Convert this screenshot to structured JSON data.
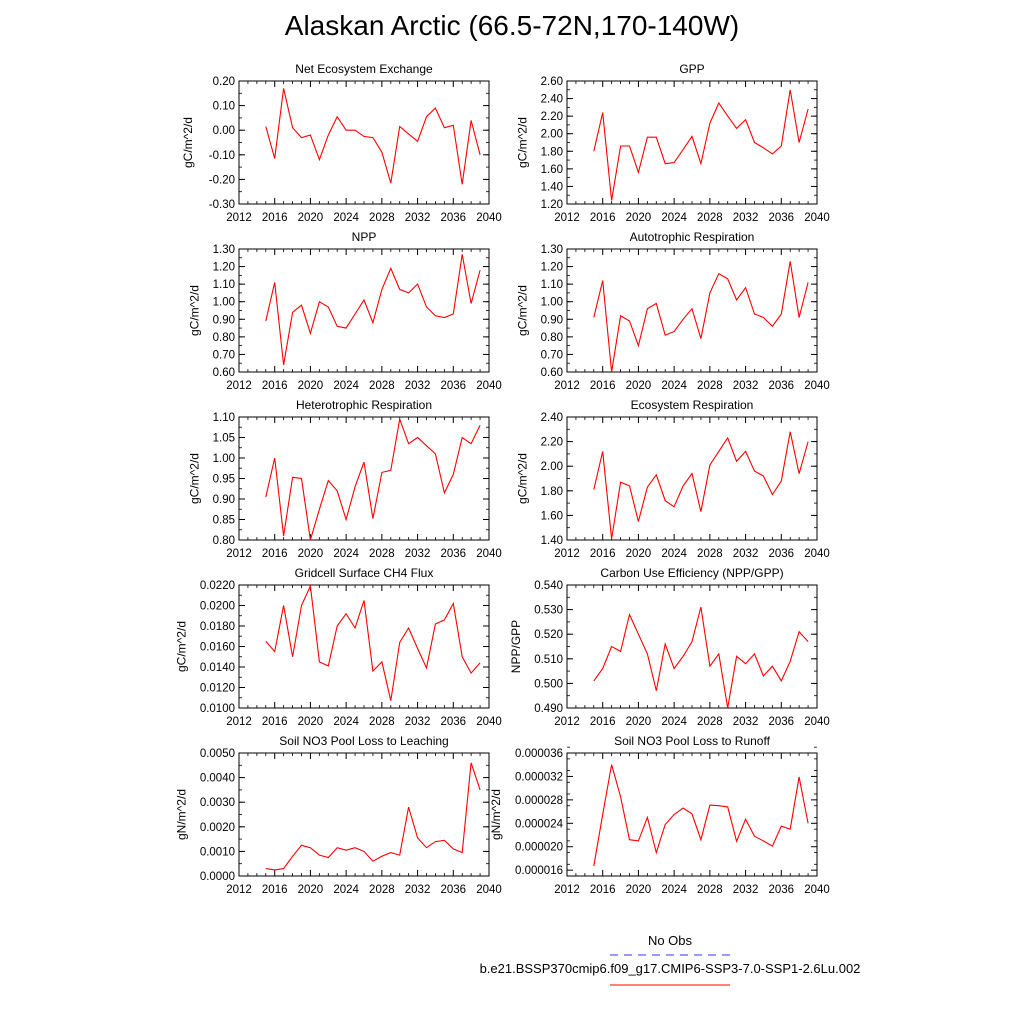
{
  "title": "Alaskan Arctic (66.5-72N,170-140W)",
  "colors": {
    "model": "#ff0000",
    "obs": "#3333ff",
    "axis": "#000000"
  },
  "legend": {
    "obs_label": "No Obs",
    "model_label": "b.e21.BSSP370cmip6.f09_g17.CMIP6-SSP3-7.0-SSP1-2.6Lu.002"
  },
  "chart_data": [
    {
      "type": "line",
      "title": "Net Ecosystem Exchange",
      "xlabel": "",
      "ylabel": "gC/m^2/d",
      "xlim": [
        2012,
        2040
      ],
      "ylim": [
        -0.3,
        0.2
      ],
      "xticks": [
        2012,
        2016,
        2020,
        2024,
        2028,
        2032,
        2036,
        2040
      ],
      "yticks": [
        -0.3,
        -0.2,
        -0.1,
        0.0,
        0.1,
        0.2
      ],
      "ytick_labels": [
        "-0.30",
        "-0.20",
        "-0.10",
        "0.00",
        "0.10",
        "0.20"
      ],
      "yminor": 0.05,
      "x": [
        2015,
        2016,
        2017,
        2018,
        2019,
        2020,
        2021,
        2022,
        2023,
        2024,
        2025,
        2026,
        2027,
        2028,
        2029,
        2030,
        2031,
        2032,
        2033,
        2034,
        2035,
        2036,
        2037,
        2038,
        2039
      ],
      "values": [
        0.015,
        -0.115,
        0.17,
        0.01,
        -0.03,
        -0.02,
        -0.12,
        -0.02,
        0.055,
        0.0,
        0.0,
        -0.025,
        -0.03,
        -0.09,
        -0.215,
        0.015,
        -0.015,
        -0.045,
        0.055,
        0.09,
        0.01,
        0.02,
        -0.22,
        0.04,
        -0.1
      ]
    },
    {
      "type": "line",
      "title": "GPP",
      "xlabel": "",
      "ylabel": "gC/m^2/d",
      "xlim": [
        2012,
        2040
      ],
      "ylim": [
        1.2,
        2.6
      ],
      "xticks": [
        2012,
        2016,
        2020,
        2024,
        2028,
        2032,
        2036,
        2040
      ],
      "yticks": [
        1.2,
        1.4,
        1.6,
        1.8,
        2.0,
        2.2,
        2.4,
        2.6
      ],
      "ytick_labels": [
        "1.20",
        "1.40",
        "1.60",
        "1.80",
        "2.00",
        "2.20",
        "2.40",
        "2.60"
      ],
      "yminor": 0.1,
      "x": [
        2015,
        2016,
        2017,
        2018,
        2019,
        2020,
        2021,
        2022,
        2023,
        2024,
        2025,
        2026,
        2027,
        2028,
        2029,
        2030,
        2031,
        2032,
        2033,
        2034,
        2035,
        2036,
        2037,
        2038,
        2039
      ],
      "values": [
        1.8,
        2.24,
        1.24,
        1.86,
        1.86,
        1.56,
        1.96,
        1.96,
        1.66,
        1.67,
        1.82,
        1.97,
        1.66,
        2.12,
        2.35,
        2.2,
        2.06,
        2.16,
        1.9,
        1.84,
        1.77,
        1.86,
        2.5,
        1.9,
        2.28
      ]
    },
    {
      "type": "line",
      "title": "NPP",
      "xlabel": "",
      "ylabel": "gC/m^2/d",
      "xlim": [
        2012,
        2040
      ],
      "ylim": [
        0.6,
        1.3
      ],
      "xticks": [
        2012,
        2016,
        2020,
        2024,
        2028,
        2032,
        2036,
        2040
      ],
      "yticks": [
        0.6,
        0.7,
        0.8,
        0.9,
        1.0,
        1.1,
        1.2,
        1.3
      ],
      "ytick_labels": [
        "0.60",
        "0.70",
        "0.80",
        "0.90",
        "1.00",
        "1.10",
        "1.20",
        "1.30"
      ],
      "yminor": 0.05,
      "x": [
        2015,
        2016,
        2017,
        2018,
        2019,
        2020,
        2021,
        2022,
        2023,
        2024,
        2025,
        2026,
        2027,
        2028,
        2029,
        2030,
        2031,
        2032,
        2033,
        2034,
        2035,
        2036,
        2037,
        2038,
        2039
      ],
      "values": [
        0.89,
        1.11,
        0.64,
        0.94,
        0.98,
        0.82,
        1.0,
        0.97,
        0.86,
        0.85,
        0.93,
        1.01,
        0.88,
        1.07,
        1.19,
        1.07,
        1.05,
        1.1,
        0.97,
        0.92,
        0.91,
        0.93,
        1.27,
        0.99,
        1.18
      ]
    },
    {
      "type": "line",
      "title": "Autotrophic Respiration",
      "xlabel": "",
      "ylabel": "gC/m^2/d",
      "xlim": [
        2012,
        2040
      ],
      "ylim": [
        0.6,
        1.3
      ],
      "xticks": [
        2012,
        2016,
        2020,
        2024,
        2028,
        2032,
        2036,
        2040
      ],
      "yticks": [
        0.6,
        0.7,
        0.8,
        0.9,
        1.0,
        1.1,
        1.2,
        1.3
      ],
      "ytick_labels": [
        "0.60",
        "0.70",
        "0.80",
        "0.90",
        "1.00",
        "1.10",
        "1.20",
        "1.30"
      ],
      "yminor": 0.05,
      "x": [
        2015,
        2016,
        2017,
        2018,
        2019,
        2020,
        2021,
        2022,
        2023,
        2024,
        2025,
        2026,
        2027,
        2028,
        2029,
        2030,
        2031,
        2032,
        2033,
        2034,
        2035,
        2036,
        2037,
        2038,
        2039
      ],
      "values": [
        0.91,
        1.12,
        0.6,
        0.92,
        0.89,
        0.75,
        0.96,
        0.99,
        0.81,
        0.83,
        0.9,
        0.96,
        0.79,
        1.05,
        1.16,
        1.13,
        1.01,
        1.08,
        0.93,
        0.91,
        0.86,
        0.93,
        1.23,
        0.91,
        1.11
      ]
    },
    {
      "type": "line",
      "title": "Heterotrophic Respiration",
      "xlabel": "",
      "ylabel": "gC/m^2/d",
      "xlim": [
        2012,
        2040
      ],
      "ylim": [
        0.8,
        1.1
      ],
      "xticks": [
        2012,
        2016,
        2020,
        2024,
        2028,
        2032,
        2036,
        2040
      ],
      "yticks": [
        0.8,
        0.85,
        0.9,
        0.95,
        1.0,
        1.05,
        1.1
      ],
      "ytick_labels": [
        "0.80",
        "0.85",
        "0.90",
        "0.95",
        "1.00",
        "1.05",
        "1.10"
      ],
      "yminor": 0.025,
      "x": [
        2015,
        2016,
        2017,
        2018,
        2019,
        2020,
        2021,
        2022,
        2023,
        2024,
        2025,
        2026,
        2027,
        2028,
        2029,
        2030,
        2031,
        2032,
        2033,
        2034,
        2035,
        2036,
        2037,
        2038,
        2039
      ],
      "values": [
        0.905,
        1.0,
        0.81,
        0.953,
        0.95,
        0.8,
        0.875,
        0.945,
        0.92,
        0.85,
        0.93,
        0.99,
        0.852,
        0.965,
        0.97,
        1.095,
        1.035,
        1.05,
        1.03,
        1.01,
        0.915,
        0.96,
        1.05,
        1.035,
        1.08
      ]
    },
    {
      "type": "line",
      "title": "Ecosystem Respiration",
      "xlabel": "",
      "ylabel": "gC/m^2/d",
      "xlim": [
        2012,
        2040
      ],
      "ylim": [
        1.4,
        2.4
      ],
      "xticks": [
        2012,
        2016,
        2020,
        2024,
        2028,
        2032,
        2036,
        2040
      ],
      "yticks": [
        1.4,
        1.6,
        1.8,
        2.0,
        2.2,
        2.4
      ],
      "ytick_labels": [
        "1.40",
        "1.60",
        "1.80",
        "2.00",
        "2.20",
        "2.40"
      ],
      "yminor": 0.1,
      "x": [
        2015,
        2016,
        2017,
        2018,
        2019,
        2020,
        2021,
        2022,
        2023,
        2024,
        2025,
        2026,
        2027,
        2028,
        2029,
        2030,
        2031,
        2032,
        2033,
        2034,
        2035,
        2036,
        2037,
        2038,
        2039
      ],
      "values": [
        1.81,
        2.12,
        1.41,
        1.87,
        1.84,
        1.55,
        1.83,
        1.93,
        1.72,
        1.67,
        1.84,
        1.94,
        1.63,
        2.01,
        2.12,
        2.23,
        2.04,
        2.12,
        1.96,
        1.92,
        1.77,
        1.88,
        2.28,
        1.94,
        2.2
      ]
    },
    {
      "type": "line",
      "title": "Gridcell Surface CH4 Flux",
      "xlabel": "",
      "ylabel": "gC/m^2/d",
      "xlim": [
        2012,
        2040
      ],
      "ylim": [
        0.01,
        0.022
      ],
      "xticks": [
        2012,
        2016,
        2020,
        2024,
        2028,
        2032,
        2036,
        2040
      ],
      "yticks": [
        0.01,
        0.012,
        0.014,
        0.016,
        0.018,
        0.02,
        0.022
      ],
      "ytick_labels": [
        "0.0100",
        "0.0120",
        "0.0140",
        "0.0160",
        "0.0180",
        "0.0200",
        "0.0220"
      ],
      "yminor": 0.001,
      "x": [
        2015,
        2016,
        2017,
        2018,
        2019,
        2020,
        2021,
        2022,
        2023,
        2024,
        2025,
        2026,
        2027,
        2028,
        2029,
        2030,
        2031,
        2032,
        2033,
        2034,
        2035,
        2036,
        2037,
        2038,
        2039
      ],
      "values": [
        0.0165,
        0.0155,
        0.02,
        0.015,
        0.02,
        0.0219,
        0.0145,
        0.0141,
        0.018,
        0.0192,
        0.0178,
        0.0205,
        0.0136,
        0.0145,
        0.0107,
        0.0164,
        0.0178,
        0.0158,
        0.0139,
        0.0182,
        0.0186,
        0.0202,
        0.015,
        0.0134,
        0.0144
      ]
    },
    {
      "type": "line",
      "title": "Carbon Use Efficiency (NPP/GPP)",
      "xlabel": "",
      "ylabel": "NPP/GPP",
      "xlim": [
        2012,
        2040
      ],
      "ylim": [
        0.49,
        0.54
      ],
      "xticks": [
        2012,
        2016,
        2020,
        2024,
        2028,
        2032,
        2036,
        2040
      ],
      "yticks": [
        0.49,
        0.5,
        0.51,
        0.52,
        0.53,
        0.54
      ],
      "ytick_labels": [
        "0.490",
        "0.500",
        "0.510",
        "0.520",
        "0.530",
        "0.540"
      ],
      "yminor": 0.005,
      "x": [
        2015,
        2016,
        2017,
        2018,
        2019,
        2020,
        2021,
        2022,
        2023,
        2024,
        2025,
        2026,
        2027,
        2028,
        2029,
        2030,
        2031,
        2032,
        2033,
        2034,
        2035,
        2036,
        2037,
        2038,
        2039
      ],
      "values": [
        0.501,
        0.506,
        0.515,
        0.513,
        0.528,
        0.52,
        0.512,
        0.497,
        0.516,
        0.506,
        0.511,
        0.517,
        0.531,
        0.507,
        0.512,
        0.49,
        0.511,
        0.508,
        0.512,
        0.503,
        0.507,
        0.501,
        0.509,
        0.521,
        0.517
      ]
    },
    {
      "type": "line",
      "title": "Soil NO3 Pool Loss to Leaching",
      "xlabel": "",
      "ylabel": "gN/m^2/d",
      "xlim": [
        2012,
        2040
      ],
      "ylim": [
        0.0,
        0.005
      ],
      "xticks": [
        2012,
        2016,
        2020,
        2024,
        2028,
        2032,
        2036,
        2040
      ],
      "yticks": [
        0.0,
        0.001,
        0.002,
        0.003,
        0.004,
        0.005
      ],
      "ytick_labels": [
        "0.0000",
        "0.0010",
        "0.0020",
        "0.0030",
        "0.0040",
        "0.0050"
      ],
      "yminor": 0.0005,
      "x": [
        2015,
        2016,
        2017,
        2018,
        2019,
        2020,
        2021,
        2022,
        2023,
        2024,
        2025,
        2026,
        2027,
        2028,
        2029,
        2030,
        2031,
        2032,
        2033,
        2034,
        2035,
        2036,
        2037,
        2038,
        2039
      ],
      "values": [
        0.0003,
        0.00025,
        0.0003,
        0.0008,
        0.00125,
        0.00115,
        0.00085,
        0.00075,
        0.00115,
        0.00105,
        0.00115,
        0.001,
        0.0006,
        0.0008,
        0.00095,
        0.00085,
        0.0028,
        0.00155,
        0.00115,
        0.0014,
        0.00145,
        0.0011,
        0.00095,
        0.0046,
        0.0035
      ]
    },
    {
      "type": "line",
      "title": "Soil NO3 Pool Loss to Runoff",
      "xlabel": "",
      "ylabel": "gN/m^2/d",
      "xlim": [
        2012,
        2040
      ],
      "ylim": [
        1.5e-05,
        3.6e-05
      ],
      "xticks": [
        2012,
        2016,
        2020,
        2024,
        2028,
        2032,
        2036,
        2040
      ],
      "yticks": [
        1.6e-05,
        2e-05,
        2.4e-05,
        2.8e-05,
        3.2e-05,
        3.6e-05
      ],
      "ytick_labels": [
        "0.000016",
        "0.000020",
        "0.000024",
        "0.000028",
        "0.000032",
        "0.000036"
      ],
      "yminor": 2e-06,
      "x": [
        2015,
        2016,
        2017,
        2018,
        2019,
        2020,
        2021,
        2022,
        2023,
        2024,
        2025,
        2026,
        2027,
        2028,
        2029,
        2030,
        2031,
        2032,
        2033,
        2034,
        2035,
        2036,
        2037,
        2038,
        2039
      ],
      "values": [
        1.67e-05,
        2.55e-05,
        3.4e-05,
        2.85e-05,
        2.12e-05,
        2.1e-05,
        2.5e-05,
        1.9e-05,
        2.38e-05,
        2.55e-05,
        2.66e-05,
        2.56e-05,
        2.12e-05,
        2.71e-05,
        2.7e-05,
        2.68e-05,
        2.09e-05,
        2.47e-05,
        2.18e-05,
        2.1e-05,
        2.01e-05,
        2.35e-05,
        2.3e-05,
        3.19e-05,
        2.4e-05
      ]
    }
  ]
}
